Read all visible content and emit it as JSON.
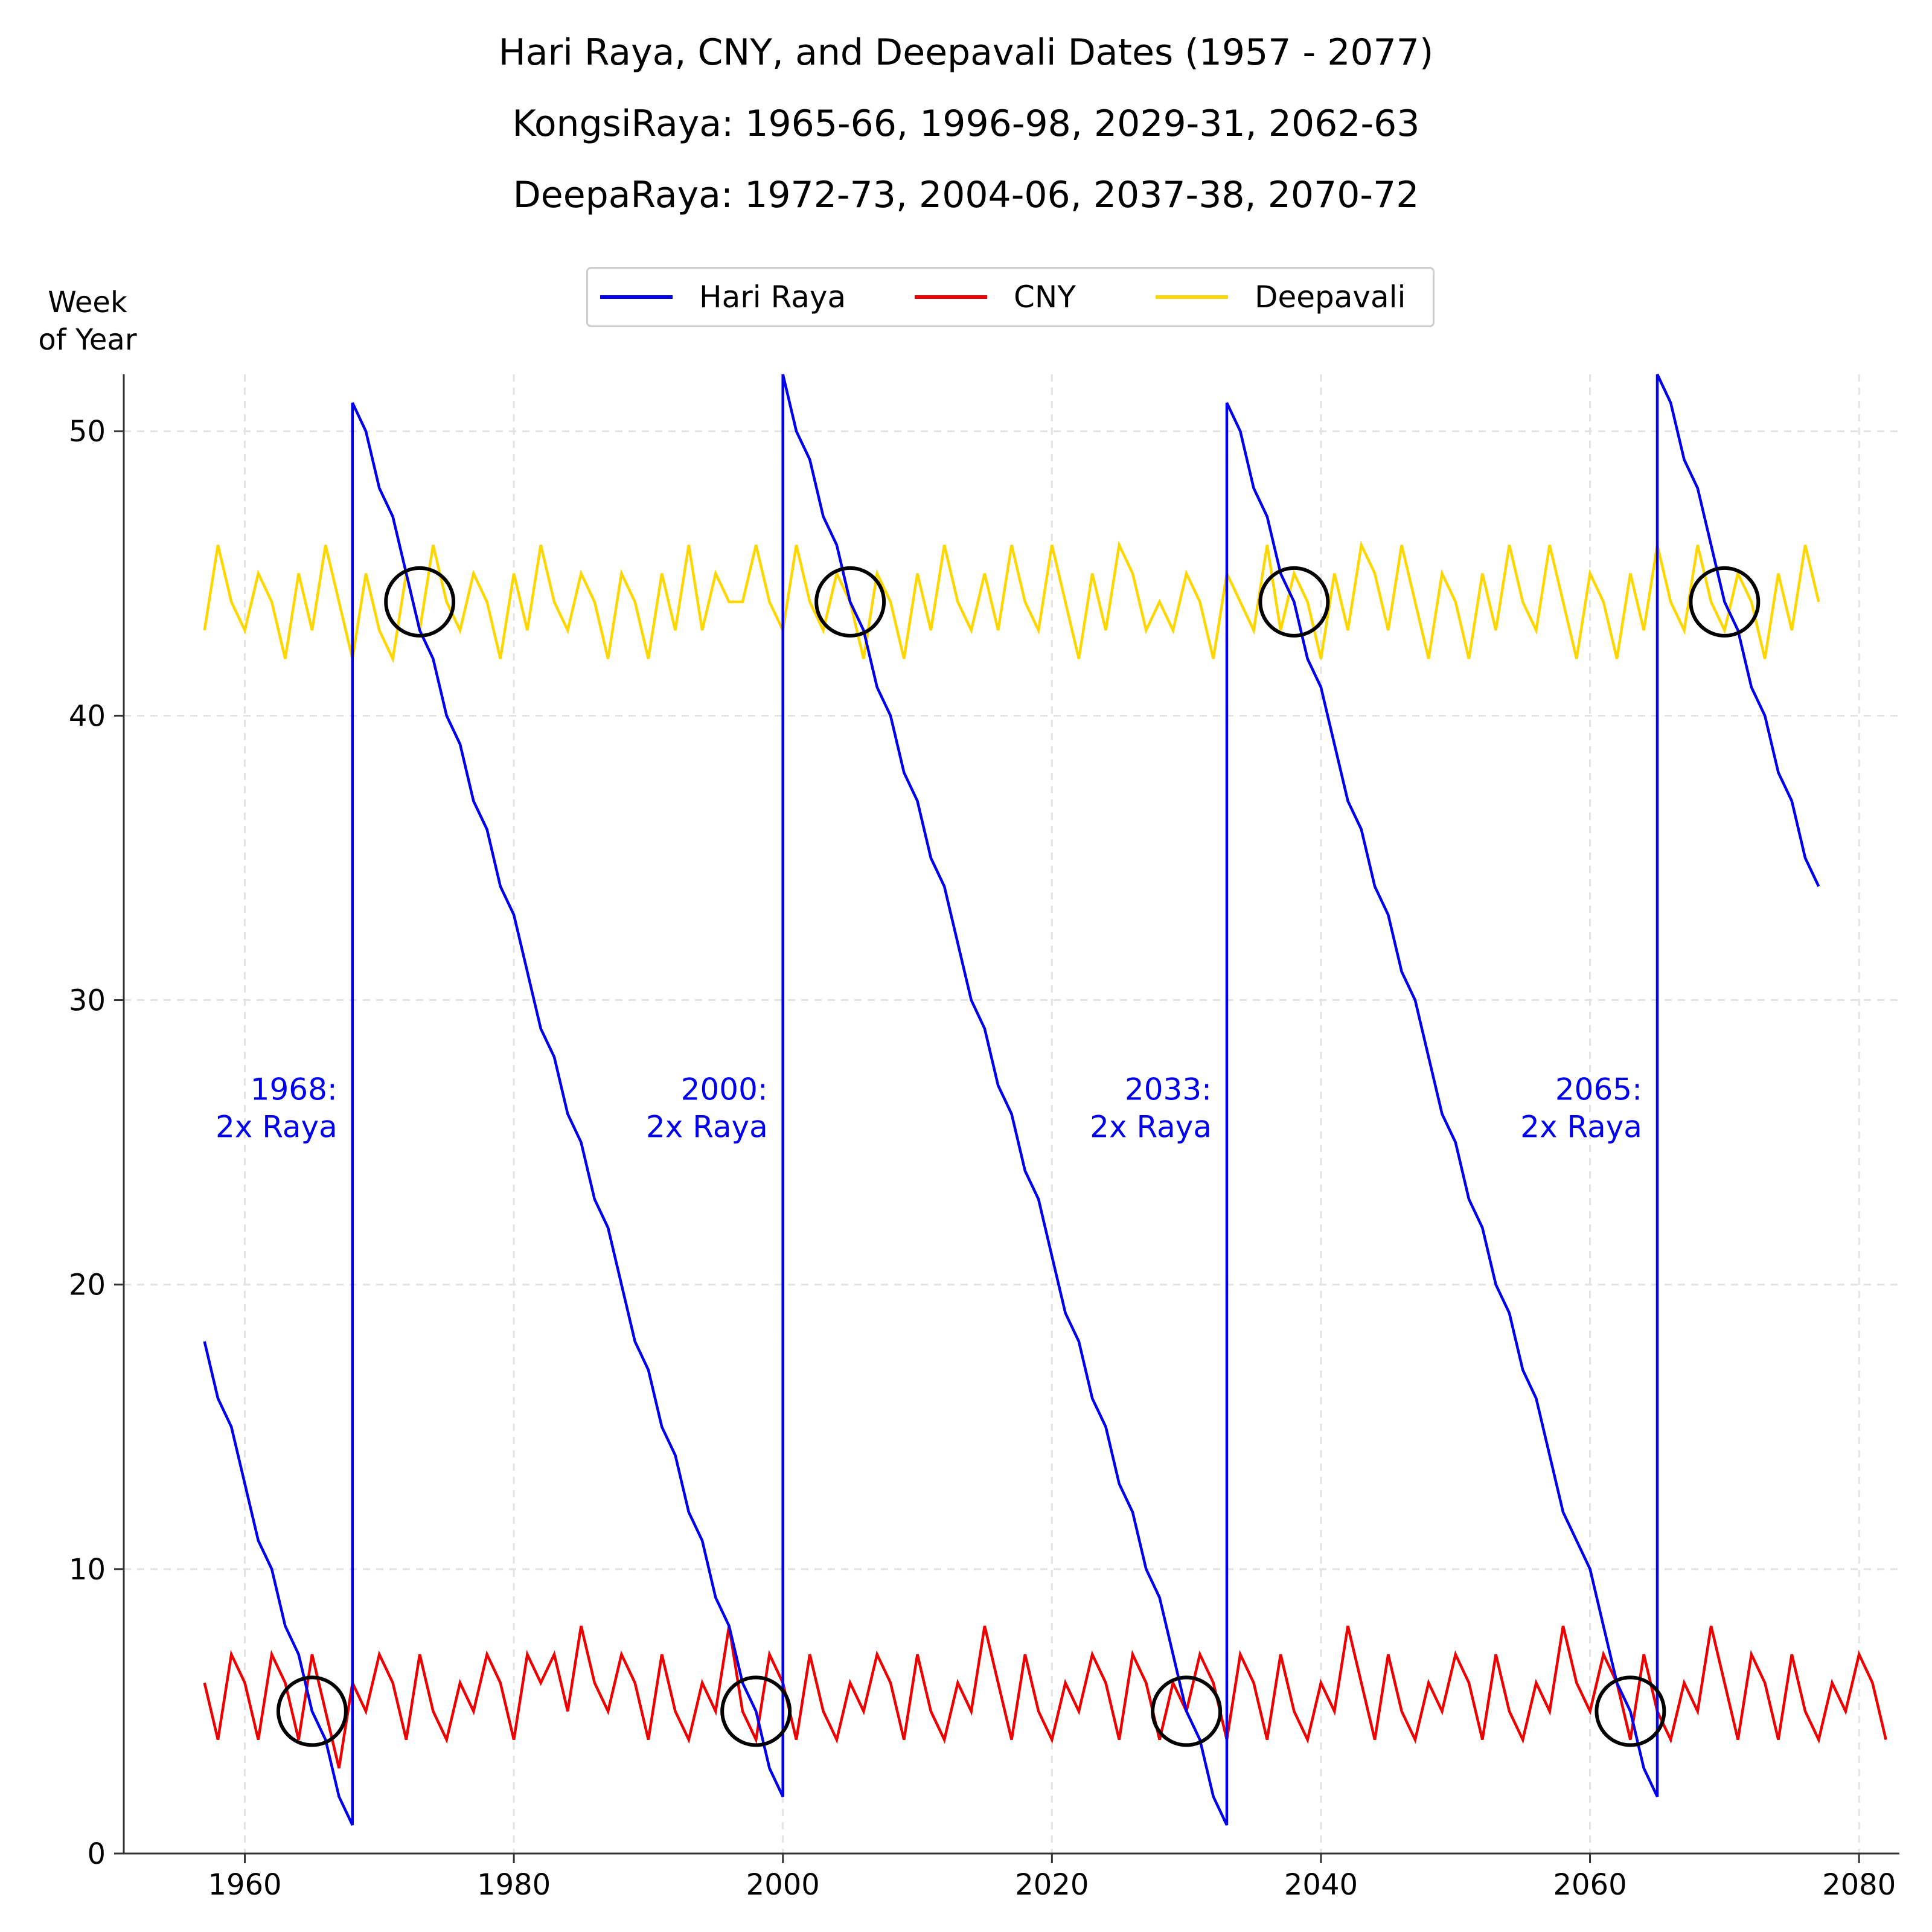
{
  "titles": {
    "main": "Hari Raya, CNY, and Deepavali Dates (1957 - 2077)",
    "kongsi": "KongsiRaya: 1965-66, 1996-98, 2029-31, 2062-63",
    "deepa": "DeepaRaya: 1972-73, 2004-06, 2037-38, 2070-72"
  },
  "chart_data": {
    "type": "line",
    "title": "Hari Raya, CNY, and Deepavali Dates (1957 - 2077)",
    "subtitles": [
      "KongsiRaya: 1965-66, 1996-98, 2029-31, 2062-63",
      "DeepaRaya: 1972-73, 2004-06, 2037-38, 2070-72"
    ],
    "ylabel_lines": [
      "Week",
      "of Year"
    ],
    "xlabel": "",
    "xlim": [
      1951,
      2083
    ],
    "ylim": [
      0,
      52
    ],
    "xticks": [
      1960,
      1980,
      2000,
      2020,
      2040,
      2060,
      2080
    ],
    "yticks": [
      0,
      10,
      20,
      30,
      40,
      50
    ],
    "grid": true,
    "legend_position": "top-center",
    "x_start": 1957,
    "series": [
      {
        "name": "Hari Raya",
        "color": "#0000ee",
        "segments": [
          {
            "x_start": 1957,
            "values": [
              18,
              16,
              15,
              13,
              11,
              10,
              8,
              7,
              5,
              4,
              2,
              1
            ]
          },
          {
            "x_start": 1968,
            "values": [
              51,
              50,
              48,
              47,
              45,
              43,
              42,
              40,
              39,
              37,
              36,
              34,
              33,
              31,
              29,
              28,
              26,
              25,
              23,
              22,
              20,
              18,
              17,
              15,
              14,
              12,
              11,
              9,
              8,
              6,
              5,
              3,
              2
            ]
          },
          {
            "x_start": 2000,
            "values": [
              52,
              50,
              49,
              47,
              46,
              44,
              43,
              41,
              40,
              38,
              37,
              35,
              34,
              32,
              30,
              29,
              27,
              26,
              24,
              23,
              21,
              19,
              18,
              16,
              15,
              13,
              12,
              10,
              9,
              7,
              5,
              4,
              2,
              1
            ]
          },
          {
            "x_start": 2033,
            "values": [
              51,
              50,
              48,
              47,
              45,
              44,
              42,
              41,
              39,
              37,
              36,
              34,
              33,
              31,
              30,
              28,
              26,
              25,
              23,
              22,
              20,
              19,
              17,
              16,
              14,
              12,
              11,
              10,
              8,
              6,
              5,
              3,
              2
            ]
          },
          {
            "x_start": 2065,
            "values": [
              52,
              51,
              49,
              48,
              46,
              44,
              43,
              41,
              40,
              38,
              37,
              35,
              34
            ]
          }
        ]
      },
      {
        "name": "CNY",
        "color": "#ee0000",
        "x_start": 1957,
        "values": [
          6,
          4,
          7,
          6,
          4,
          7,
          6,
          4,
          7,
          5,
          3,
          6,
          5,
          7,
          6,
          4,
          7,
          5,
          4,
          6,
          5,
          7,
          6,
          4,
          7,
          6,
          7,
          5,
          8,
          6,
          5,
          7,
          6,
          4,
          7,
          5,
          4,
          6,
          5,
          8,
          5,
          4,
          7,
          6,
          4,
          7,
          5,
          4,
          6,
          5,
          7,
          6,
          4,
          7,
          5,
          4,
          6,
          5,
          8,
          6,
          4,
          7,
          5,
          4,
          6,
          5,
          7,
          6,
          4,
          7,
          6,
          4,
          6,
          5,
          7,
          6,
          4,
          7,
          6,
          4,
          7,
          5,
          4,
          6,
          5,
          8,
          6,
          4,
          7,
          5,
          4,
          6,
          5,
          7,
          6,
          4,
          7,
          5,
          4,
          6,
          5,
          8,
          6,
          5,
          7,
          6,
          4,
          7,
          5,
          4,
          6,
          5,
          8,
          6,
          4,
          7,
          6,
          4,
          7,
          5,
          4,
          6,
          5,
          7,
          6,
          4
        ]
      },
      {
        "name": "Deepavali",
        "color": "#ffd700",
        "x_start": 1957,
        "values": [
          43,
          46,
          44,
          43,
          45,
          44,
          42,
          45,
          43,
          46,
          44,
          42,
          45,
          43,
          42,
          45,
          43,
          46,
          44,
          43,
          45,
          44,
          42,
          45,
          43,
          46,
          44,
          43,
          45,
          44,
          42,
          45,
          44,
          42,
          45,
          43,
          46,
          43,
          45,
          44,
          44,
          46,
          44,
          43,
          46,
          44,
          43,
          45,
          44,
          42,
          45,
          44,
          42,
          45,
          43,
          46,
          44,
          43,
          45,
          43,
          46,
          44,
          43,
          46,
          44,
          42,
          45,
          43,
          46,
          45,
          43,
          44,
          43,
          45,
          44,
          42,
          45,
          44,
          43,
          46,
          43,
          45,
          44,
          42,
          45,
          43,
          46,
          45,
          43,
          46,
          44,
          42,
          45,
          44,
          42,
          45,
          43,
          46,
          44,
          43,
          46,
          44,
          42,
          45,
          44,
          42,
          45,
          43,
          46,
          44,
          43,
          46,
          44,
          43,
          45,
          44,
          42,
          45,
          43,
          46,
          44
        ]
      }
    ],
    "circles": [
      {
        "x": 1965,
        "y": 5
      },
      {
        "x": 1998,
        "y": 5
      },
      {
        "x": 2030,
        "y": 5
      },
      {
        "x": 2063,
        "y": 5
      },
      {
        "x": 1973,
        "y": 44
      },
      {
        "x": 2005,
        "y": 44
      },
      {
        "x": 2038,
        "y": 44
      },
      {
        "x": 2070,
        "y": 44
      }
    ],
    "annotations": [
      {
        "x": 1968,
        "y": 26.5,
        "line1": "1968:",
        "line2": "2x Raya"
      },
      {
        "x": 2000,
        "y": 26.5,
        "line1": "2000:",
        "line2": "2x Raya"
      },
      {
        "x": 2033,
        "y": 26.5,
        "line1": "2033:",
        "line2": "2x Raya"
      },
      {
        "x": 2065,
        "y": 26.5,
        "line1": "2065:",
        "line2": "2x Raya"
      }
    ]
  }
}
